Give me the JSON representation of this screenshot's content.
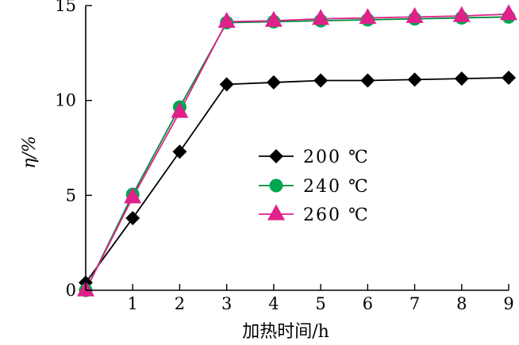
{
  "chart_data": {
    "type": "line",
    "title": "",
    "xlabel": "加热时间/h",
    "ylabel": "η/%",
    "xlim": [
      0,
      9
    ],
    "ylim": [
      0,
      15
    ],
    "x_ticks": [
      1,
      2,
      3,
      4,
      5,
      6,
      7,
      8,
      9
    ],
    "y_ticks": [
      0,
      5,
      10,
      15
    ],
    "grid": false,
    "legend_position": "center-right",
    "series": [
      {
        "name": "200 ℃",
        "marker": "diamond",
        "line_color": "#000000",
        "marker_color": "#000000",
        "x": [
          0,
          0,
          1,
          2,
          3,
          4,
          5,
          6,
          7,
          8,
          9
        ],
        "y": [
          0,
          0.4,
          3.8,
          7.3,
          10.85,
          10.95,
          11.05,
          11.05,
          11.1,
          11.15,
          11.2
        ]
      },
      {
        "name": "240 ℃",
        "marker": "circle",
        "line_color": "#008C3C",
        "marker_color": "#00A650",
        "x": [
          0,
          1,
          2,
          3,
          4,
          5,
          6,
          7,
          8,
          9
        ],
        "y": [
          0,
          5.05,
          9.65,
          14.1,
          14.15,
          14.2,
          14.25,
          14.3,
          14.35,
          14.4
        ]
      },
      {
        "name": "260 ℃",
        "marker": "triangle",
        "line_color": "#E0218A",
        "marker_color": "#E0218A",
        "x": [
          0,
          1,
          2,
          3,
          4,
          5,
          6,
          7,
          8,
          9
        ],
        "y": [
          0,
          4.9,
          9.4,
          14.15,
          14.2,
          14.3,
          14.35,
          14.4,
          14.45,
          14.55
        ]
      }
    ]
  }
}
